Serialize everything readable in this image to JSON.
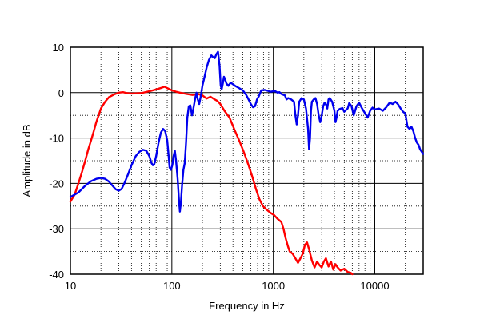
{
  "chart_data": {
    "type": "line",
    "title": "",
    "xlabel": "Frequency in Hz",
    "ylabel": "Amplitude in dB",
    "x_scale": "log",
    "xlim": [
      10,
      30000
    ],
    "ylim": [
      -40,
      10
    ],
    "x_ticks": [
      10,
      100,
      1000,
      10000
    ],
    "x_tick_labels": [
      "10",
      "100",
      "1000",
      "10000"
    ],
    "y_ticks": [
      -40,
      -30,
      -20,
      -10,
      0,
      10
    ],
    "y_tick_labels": [
      "-40",
      "-30",
      "-20",
      "-10",
      "0",
      "10"
    ],
    "grid": true,
    "legend": "none",
    "series": [
      {
        "color": "#ff0000",
        "points": [
          [
            10,
            -24
          ],
          [
            11,
            -22.5
          ],
          [
            12,
            -20
          ],
          [
            13,
            -17.5
          ],
          [
            14,
            -15
          ],
          [
            15,
            -12.5
          ],
          [
            16,
            -10.5
          ],
          [
            17,
            -8.5
          ],
          [
            18,
            -6.5
          ],
          [
            19,
            -5
          ],
          [
            20,
            -3.5
          ],
          [
            22,
            -2
          ],
          [
            24,
            -1
          ],
          [
            27,
            -0.4
          ],
          [
            30,
            0
          ],
          [
            33,
            0.1
          ],
          [
            36,
            -0.1
          ],
          [
            40,
            -0.2
          ],
          [
            50,
            -0.1
          ],
          [
            60,
            0.3
          ],
          [
            70,
            0.7
          ],
          [
            80,
            1.1
          ],
          [
            85,
            1.3
          ],
          [
            90,
            1.0
          ],
          [
            100,
            0.5
          ],
          [
            110,
            0.2
          ],
          [
            120,
            0.0
          ],
          [
            140,
            -0.3
          ],
          [
            160,
            -0.5
          ],
          [
            180,
            -0.3
          ],
          [
            200,
            -0.6
          ],
          [
            220,
            -1.3
          ],
          [
            240,
            -0.9
          ],
          [
            260,
            -1.4
          ],
          [
            280,
            -1.8
          ],
          [
            300,
            -2.5
          ],
          [
            330,
            -4
          ],
          [
            370,
            -5.5
          ],
          [
            420,
            -8.5
          ],
          [
            470,
            -11
          ],
          [
            520,
            -13.5
          ],
          [
            570,
            -16
          ],
          [
            620,
            -18.5
          ],
          [
            680,
            -21.5
          ],
          [
            730,
            -23.5
          ],
          [
            790,
            -25
          ],
          [
            860,
            -25.8
          ],
          [
            940,
            -26.5
          ],
          [
            1020,
            -27
          ],
          [
            1100,
            -27.8
          ],
          [
            1200,
            -28.5
          ],
          [
            1260,
            -30
          ],
          [
            1320,
            -32
          ],
          [
            1400,
            -34
          ],
          [
            1450,
            -35
          ],
          [
            1550,
            -35.5
          ],
          [
            1650,
            -36.5
          ],
          [
            1750,
            -37.5
          ],
          [
            1850,
            -36.5
          ],
          [
            1950,
            -35.5
          ],
          [
            2050,
            -33.5
          ],
          [
            2150,
            -33
          ],
          [
            2250,
            -34.5
          ],
          [
            2400,
            -37
          ],
          [
            2550,
            -38.5
          ],
          [
            2700,
            -37.2
          ],
          [
            2850,
            -38
          ],
          [
            3000,
            -38.5
          ],
          [
            3150,
            -37.2
          ],
          [
            3300,
            -36.5
          ],
          [
            3500,
            -38.3
          ],
          [
            3700,
            -37.2
          ],
          [
            3900,
            -39
          ],
          [
            4100,
            -37.8
          ],
          [
            4300,
            -38.5
          ],
          [
            4600,
            -39.2
          ],
          [
            5000,
            -38.8
          ],
          [
            5400,
            -39.5
          ],
          [
            5800,
            -39.7
          ],
          [
            6000,
            -40
          ]
        ]
      },
      {
        "color": "#0000ee",
        "points": [
          [
            10,
            -23
          ],
          [
            12,
            -22
          ],
          [
            14,
            -20.5
          ],
          [
            16,
            -19.5
          ],
          [
            18,
            -19
          ],
          [
            20,
            -18.8
          ],
          [
            22,
            -19
          ],
          [
            24,
            -19.6
          ],
          [
            26,
            -20.5
          ],
          [
            28,
            -21.3
          ],
          [
            30,
            -21.6
          ],
          [
            32,
            -21.2
          ],
          [
            34,
            -20
          ],
          [
            37,
            -18
          ],
          [
            40,
            -16
          ],
          [
            44,
            -14
          ],
          [
            48,
            -13
          ],
          [
            52,
            -12.6
          ],
          [
            56,
            -12.8
          ],
          [
            60,
            -14
          ],
          [
            63,
            -15.5
          ],
          [
            65,
            -16
          ],
          [
            67,
            -15.8
          ],
          [
            70,
            -14
          ],
          [
            74,
            -11
          ],
          [
            78,
            -8.8
          ],
          [
            82,
            -8
          ],
          [
            86,
            -8.5
          ],
          [
            90,
            -10.5
          ],
          [
            93,
            -14
          ],
          [
            95,
            -16.5
          ],
          [
            98,
            -17
          ],
          [
            101,
            -16
          ],
          [
            104,
            -14
          ],
          [
            107,
            -12.8
          ],
          [
            110,
            -15
          ],
          [
            114,
            -19
          ],
          [
            117,
            -23
          ],
          [
            120,
            -26.2
          ],
          [
            123,
            -24
          ],
          [
            126,
            -20.5
          ],
          [
            130,
            -17
          ],
          [
            134,
            -15.5
          ],
          [
            138,
            -11
          ],
          [
            142,
            -5.5
          ],
          [
            147,
            -3
          ],
          [
            152,
            -2.8
          ],
          [
            158,
            -5
          ],
          [
            163,
            -3.5
          ],
          [
            170,
            -1.2
          ],
          [
            175,
            0
          ],
          [
            180,
            -1.5
          ],
          [
            186,
            -2.5
          ],
          [
            192,
            -1
          ],
          [
            200,
            1.5
          ],
          [
            210,
            3.5
          ],
          [
            220,
            5.5
          ],
          [
            232,
            7.2
          ],
          [
            245,
            8.2
          ],
          [
            255,
            7.8
          ],
          [
            265,
            7.6
          ],
          [
            275,
            8.5
          ],
          [
            285,
            9
          ],
          [
            295,
            6
          ],
          [
            303,
            1.5
          ],
          [
            310,
            0.8
          ],
          [
            318,
            2
          ],
          [
            326,
            3.5
          ],
          [
            334,
            3
          ],
          [
            345,
            2
          ],
          [
            360,
            1.5
          ],
          [
            380,
            2.2
          ],
          [
            420,
            1.5
          ],
          [
            460,
            1.0
          ],
          [
            500,
            0.5
          ],
          [
            540,
            -0.5
          ],
          [
            570,
            -1.5
          ],
          [
            600,
            -2.5
          ],
          [
            630,
            -3.2
          ],
          [
            660,
            -3
          ],
          [
            690,
            -1.5
          ],
          [
            720,
            -0.8
          ],
          [
            760,
            0.5
          ],
          [
            820,
            0.6
          ],
          [
            880,
            0.4
          ],
          [
            940,
            0.2
          ],
          [
            1000,
            0.3
          ],
          [
            1050,
            0.3
          ],
          [
            1100,
            0
          ],
          [
            1150,
            0.1
          ],
          [
            1200,
            -0.3
          ],
          [
            1300,
            -0.6
          ],
          [
            1350,
            -1.5
          ],
          [
            1400,
            -1.2
          ],
          [
            1500,
            -1.5
          ],
          [
            1600,
            -2
          ],
          [
            1650,
            -5
          ],
          [
            1700,
            -7
          ],
          [
            1750,
            -5
          ],
          [
            1800,
            -2
          ],
          [
            1900,
            -1.2
          ],
          [
            2000,
            -1.5
          ],
          [
            2100,
            -3.5
          ],
          [
            2200,
            -8
          ],
          [
            2250,
            -12.5
          ],
          [
            2300,
            -10
          ],
          [
            2350,
            -4
          ],
          [
            2400,
            -2
          ],
          [
            2500,
            -1.5
          ],
          [
            2600,
            -1.2
          ],
          [
            2700,
            -2.5
          ],
          [
            2800,
            -5
          ],
          [
            2900,
            -6.5
          ],
          [
            3000,
            -5
          ],
          [
            3100,
            -3
          ],
          [
            3200,
            -2.2
          ],
          [
            3300,
            -2.6
          ],
          [
            3400,
            -3.5
          ],
          [
            3500,
            -1.5
          ],
          [
            3600,
            -1.2
          ],
          [
            3800,
            -2
          ],
          [
            4000,
            -4
          ],
          [
            4100,
            -6.5
          ],
          [
            4200,
            -5.5
          ],
          [
            4300,
            -4
          ],
          [
            4500,
            -3.6
          ],
          [
            4800,
            -3.4
          ],
          [
            5000,
            -4.2
          ],
          [
            5400,
            -3.5
          ],
          [
            5600,
            -2.3
          ],
          [
            5900,
            -3
          ],
          [
            6200,
            -5
          ],
          [
            6600,
            -3
          ],
          [
            7000,
            -2.2
          ],
          [
            7500,
            -3.5
          ],
          [
            8000,
            -4.5
          ],
          [
            8500,
            -5.5
          ],
          [
            9000,
            -4
          ],
          [
            9500,
            -3.3
          ],
          [
            10000,
            -3.7
          ],
          [
            11000,
            -3.5
          ],
          [
            12000,
            -4.0
          ],
          [
            13000,
            -3.2
          ],
          [
            14000,
            -2.2
          ],
          [
            15000,
            -2.5
          ],
          [
            16000,
            -2.0
          ],
          [
            17000,
            -2.6
          ],
          [
            18000,
            -3.5
          ],
          [
            19000,
            -4.2
          ],
          [
            20000,
            -4.6
          ],
          [
            21000,
            -7.5
          ],
          [
            22000,
            -8
          ],
          [
            23000,
            -7.5
          ],
          [
            24000,
            -8.5
          ],
          [
            25000,
            -10
          ],
          [
            26000,
            -11
          ],
          [
            27000,
            -11.5
          ],
          [
            28000,
            -12.5
          ],
          [
            30000,
            -13.5
          ]
        ]
      }
    ]
  }
}
